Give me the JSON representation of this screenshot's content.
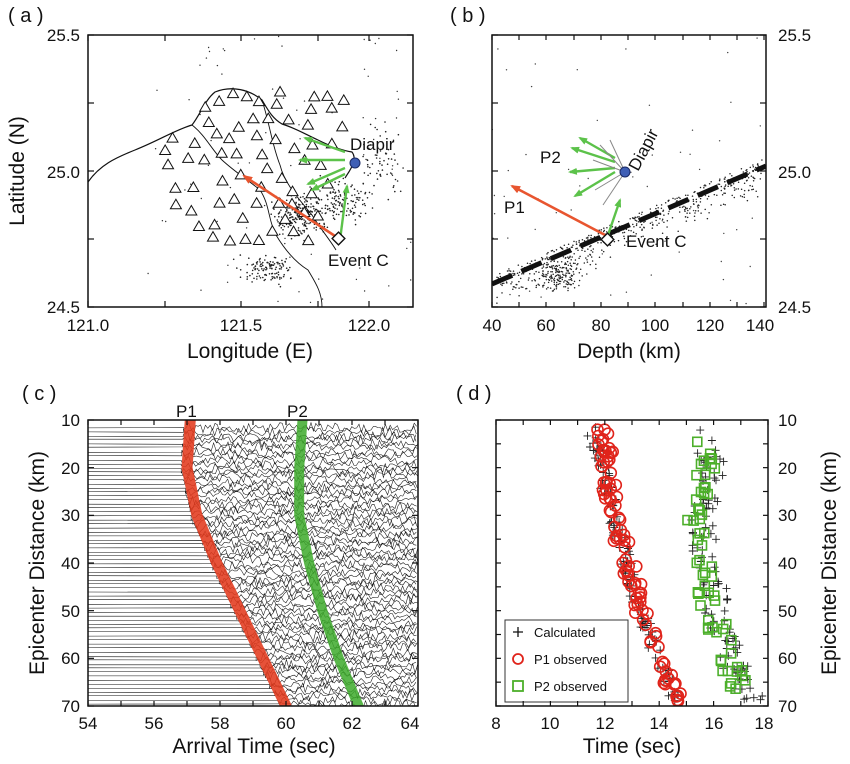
{
  "panels": {
    "a": {
      "label": "( a )",
      "xlabel": "Longitude (E)",
      "ylabel": "Latitude (N)",
      "xticks": [
        "121.0",
        "121.5",
        "122.0"
      ],
      "yticks": [
        "25.5",
        "25.0",
        "24.5"
      ],
      "diapir_label": "Diapir",
      "event_label": "Event C"
    },
    "b": {
      "label": "( b )",
      "xlabel": "Depth (km)",
      "xticks": [
        "40",
        "60",
        "80",
        "100",
        "120",
        "140"
      ],
      "yticks": [
        "25.5",
        "25.0",
        "24.5"
      ],
      "diapir_label": "Diapir",
      "event_label": "Event C",
      "p1_label": "P1",
      "p2_label": "P2"
    },
    "c": {
      "label": "( c )",
      "xlabel": "Arrival Time (sec)",
      "ylabel": "Epicenter Distance (km)",
      "xticks": [
        "54",
        "56",
        "58",
        "60",
        "62",
        "64"
      ],
      "yticks": [
        "10",
        "20",
        "30",
        "40",
        "50",
        "60",
        "70"
      ],
      "p1_label": "P1",
      "p2_label": "P2"
    },
    "d": {
      "label": "( d )",
      "xlabel": "Time (sec)",
      "ylabel": "Epicenter Distance (km)",
      "xticks": [
        "8",
        "10",
        "12",
        "14",
        "16",
        "18"
      ],
      "yticks": [
        "10",
        "20",
        "30",
        "40",
        "50",
        "60",
        "70"
      ],
      "legend": [
        "Calculated",
        "P1 observed",
        "P2 observed"
      ]
    }
  },
  "colors": {
    "p1": "#e8552f",
    "p1_band": "#e23a1e",
    "p2": "#5cc24a",
    "p2_band": "#3daa2c",
    "diapir": "#3f5fb5",
    "p1_obs": "#e0241b",
    "p2_obs": "#4caf2a"
  },
  "chart_data": [
    {
      "panel": "a",
      "type": "scatter",
      "xlabel": "Longitude (E)",
      "ylabel": "Latitude (N)",
      "xlim": [
        121.0,
        122.25
      ],
      "ylim": [
        24.5,
        25.5
      ],
      "markers": [
        {
          "name": "Diapir",
          "x": 122.0,
          "y": 25.03
        },
        {
          "name": "Event C",
          "x": 122.04,
          "y": 24.78
        }
      ],
      "arrows": [
        {
          "name": "P1",
          "from": [
            122.04,
            24.78
          ],
          "to": [
            121.55,
            24.98
          ]
        },
        {
          "name": "P2",
          "from": [
            122.04,
            24.78
          ],
          "to": [
            122.0,
            24.92
          ]
        }
      ]
    },
    {
      "panel": "b",
      "type": "scatter",
      "xlabel": "Depth (km)",
      "xlim": [
        40,
        140
      ],
      "ylim": [
        24.5,
        25.5
      ],
      "markers": [
        {
          "name": "Diapir",
          "x": 90,
          "y": 25.0
        },
        {
          "name": "Event C",
          "x": 83,
          "y": 24.75
        }
      ],
      "slab_line": [
        [
          40,
          24.58
        ],
        [
          140,
          25.02
        ]
      ],
      "arrows": [
        {
          "name": "P1",
          "from": [
            83,
            24.75
          ],
          "to": [
            48,
            24.95
          ]
        },
        {
          "name": "P2",
          "from": [
            83,
            24.75
          ],
          "to": [
            84,
            24.85
          ]
        }
      ]
    },
    {
      "panel": "c",
      "type": "line",
      "xlabel": "Arrival Time (sec)",
      "ylabel": "Epicenter Distance (km)",
      "xlim": [
        54,
        64
      ],
      "ylim": [
        70,
        10
      ],
      "series": [
        {
          "name": "P1",
          "distance": [
            10,
            20,
            30,
            40,
            50,
            60,
            70
          ],
          "time": [
            57.1,
            57.0,
            57.3,
            57.9,
            58.6,
            59.3,
            60.0
          ]
        },
        {
          "name": "P2",
          "distance": [
            10,
            20,
            30,
            40,
            50,
            60,
            70
          ],
          "time": [
            60.5,
            60.4,
            60.4,
            60.7,
            61.1,
            61.6,
            62.2
          ]
        }
      ]
    },
    {
      "panel": "d",
      "type": "scatter",
      "xlabel": "Time (sec)",
      "ylabel": "Epicenter Distance (km)",
      "xlim": [
        8,
        18
      ],
      "ylim": [
        70,
        10
      ],
      "series": [
        {
          "name": "Calculated",
          "distance": [
            12,
            20,
            30,
            40,
            50,
            60,
            68
          ],
          "time": [
            11.5,
            11.9,
            12.3,
            12.8,
            13.3,
            14.0,
            14.6
          ]
        },
        {
          "name": "P1 observed",
          "distance": [
            12,
            15,
            20,
            25,
            30,
            35,
            40,
            45,
            50,
            55,
            60,
            65,
            68
          ],
          "time": [
            11.8,
            11.9,
            12.0,
            12.1,
            12.3,
            12.5,
            12.8,
            13.0,
            13.2,
            13.6,
            14.0,
            14.3,
            14.6
          ]
        },
        {
          "name": "P2 observed",
          "distance": [
            14,
            20,
            25,
            30,
            35,
            40,
            45,
            50,
            55,
            60,
            65,
            69
          ],
          "time": [
            15.6,
            15.7,
            15.8,
            15.3,
            15.5,
            15.5,
            15.8,
            15.9,
            16.2,
            16.5,
            16.8,
            17.3
          ]
        }
      ]
    }
  ]
}
